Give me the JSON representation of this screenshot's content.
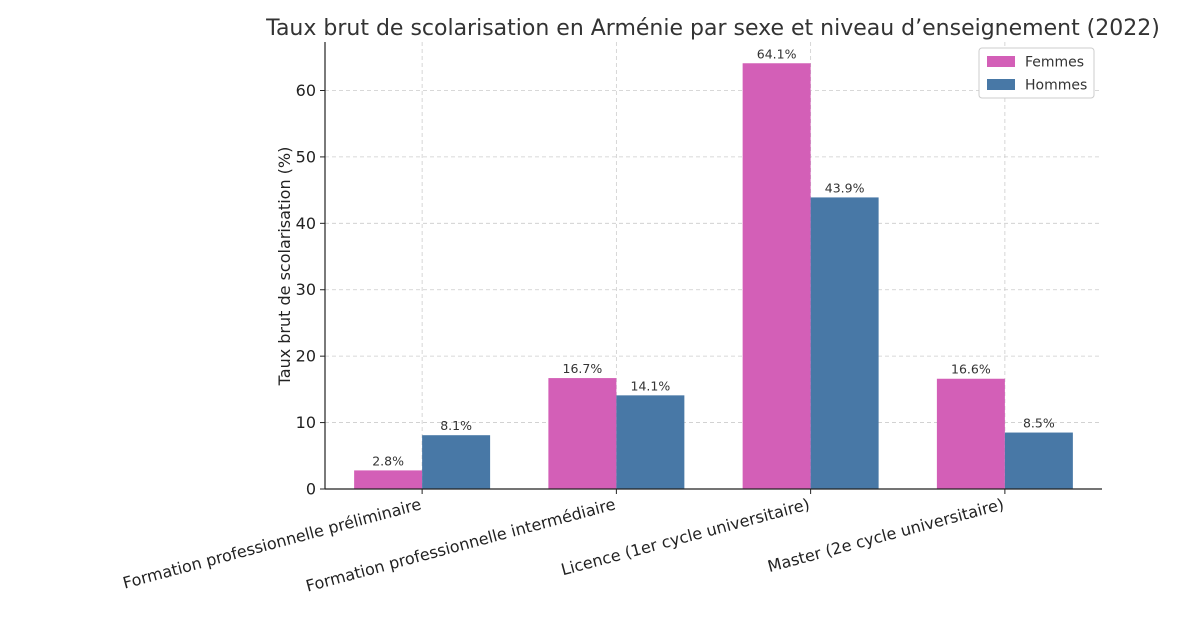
{
  "chart_data": {
    "type": "bar",
    "title": "Taux brut de scolarisation en Arménie par sexe et niveau d’enseignement (2022)",
    "xlabel": "",
    "ylabel": "Taux brut de scolarisation (%)",
    "ylim": [
      0,
      67.3
    ],
    "yticks": [
      0,
      10,
      20,
      30,
      40,
      50,
      60
    ],
    "grid": true,
    "legend": "top-right",
    "categories": [
      "Formation professionnelle préliminaire",
      "Formation professionnelle intermédiaire",
      "Licence (1er cycle universitaire)",
      "Master (2e cycle universitaire)"
    ],
    "series": [
      {
        "name": "Femmes",
        "color": "#d35fb7",
        "values": [
          2.8,
          16.7,
          64.1,
          16.6
        ],
        "labels": [
          "2.8%",
          "16.7%",
          "64.1%",
          "16.6%"
        ]
      },
      {
        "name": "Hommes",
        "color": "#4878a6",
        "values": [
          8.1,
          14.1,
          43.9,
          8.5
        ],
        "labels": [
          "8.1%",
          "14.1%",
          "43.9%",
          "8.5%"
        ]
      }
    ]
  }
}
